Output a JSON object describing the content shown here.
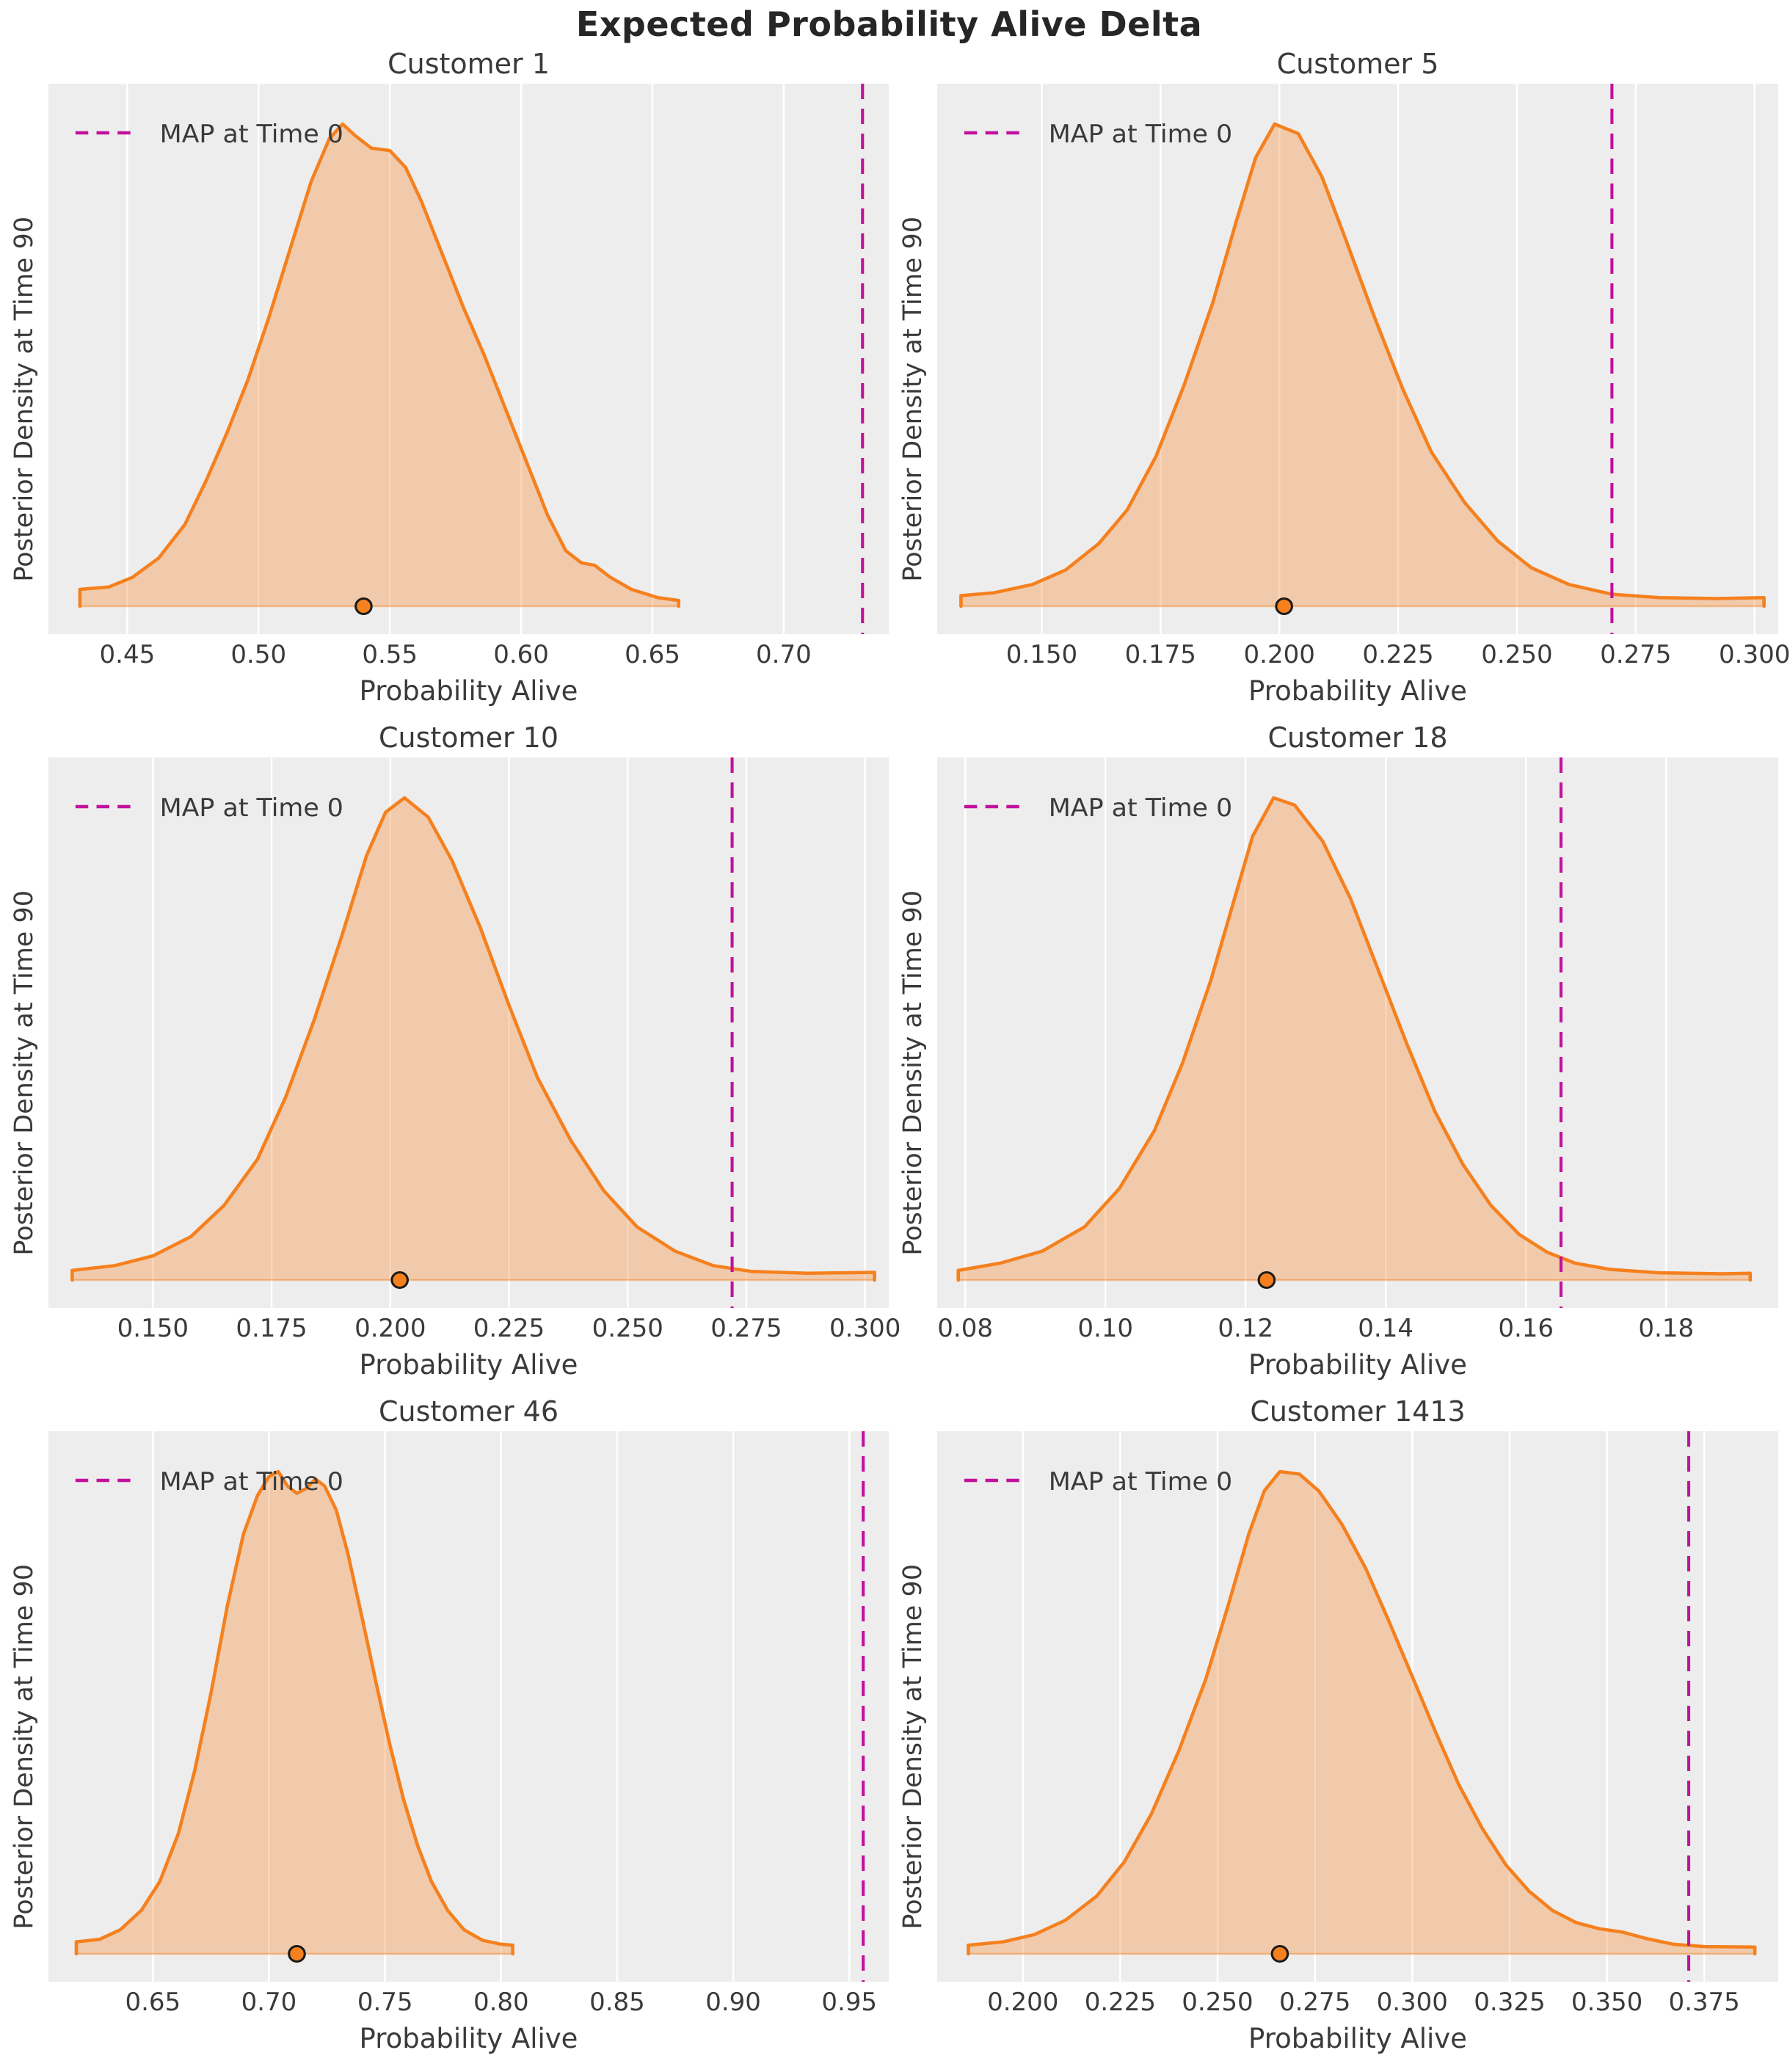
{
  "figure": {
    "suptitle": "Expected Probability Alive Delta"
  },
  "colors": {
    "curve": "#f5801e",
    "fill_opacity": 0.32,
    "map_line": "#c2119d",
    "plot_bg": "#ededed",
    "gridline": "#ffffff",
    "text": "#3a3a3a",
    "dot_fill": "#f5801e",
    "dot_edge": "#1a1a1a"
  },
  "chart_data": [
    {
      "type": "area",
      "title": "Customer 1",
      "xlabel": "Probability Alive",
      "ylabel": "Posterior Density at Time 90",
      "legend": "MAP at Time 0",
      "xlim": [
        0.42,
        0.74
      ],
      "ticks": [
        0.45,
        0.5,
        0.55,
        0.6,
        0.65,
        0.7
      ],
      "tick_labels": [
        "0.45",
        "0.50",
        "0.55",
        "0.60",
        "0.65",
        "0.70"
      ],
      "map_at_time_0": 0.73,
      "dot_value": 0.54,
      "grid": true,
      "density": [
        [
          0.432,
          0.0
        ],
        [
          0.432,
          0.035
        ],
        [
          0.443,
          0.04
        ],
        [
          0.452,
          0.06
        ],
        [
          0.462,
          0.1
        ],
        [
          0.472,
          0.17
        ],
        [
          0.48,
          0.26
        ],
        [
          0.488,
          0.36
        ],
        [
          0.496,
          0.47
        ],
        [
          0.504,
          0.6
        ],
        [
          0.512,
          0.74
        ],
        [
          0.52,
          0.88
        ],
        [
          0.527,
          0.97
        ],
        [
          0.532,
          1.0
        ],
        [
          0.537,
          0.975
        ],
        [
          0.543,
          0.95
        ],
        [
          0.55,
          0.945
        ],
        [
          0.556,
          0.91
        ],
        [
          0.562,
          0.84
        ],
        [
          0.57,
          0.73
        ],
        [
          0.578,
          0.62
        ],
        [
          0.586,
          0.52
        ],
        [
          0.594,
          0.41
        ],
        [
          0.602,
          0.3
        ],
        [
          0.61,
          0.19
        ],
        [
          0.617,
          0.115
        ],
        [
          0.623,
          0.09
        ],
        [
          0.628,
          0.085
        ],
        [
          0.634,
          0.06
        ],
        [
          0.642,
          0.035
        ],
        [
          0.652,
          0.018
        ],
        [
          0.66,
          0.012
        ],
        [
          0.66,
          0.0
        ]
      ]
    },
    {
      "type": "area",
      "title": "Customer 5",
      "xlabel": "Probability Alive",
      "ylabel": "Posterior Density at Time 90",
      "legend": "MAP at Time 0",
      "xlim": [
        0.128,
        0.305
      ],
      "ticks": [
        0.15,
        0.175,
        0.2,
        0.225,
        0.25,
        0.275,
        0.3
      ],
      "tick_labels": [
        "0.150",
        "0.175",
        "0.200",
        "0.225",
        "0.250",
        "0.275",
        "0.300"
      ],
      "map_at_time_0": 0.27,
      "dot_value": 0.201,
      "grid": true,
      "density": [
        [
          0.133,
          0.0
        ],
        [
          0.133,
          0.022
        ],
        [
          0.14,
          0.028
        ],
        [
          0.148,
          0.045
        ],
        [
          0.155,
          0.075
        ],
        [
          0.162,
          0.13
        ],
        [
          0.168,
          0.2
        ],
        [
          0.174,
          0.31
        ],
        [
          0.18,
          0.46
        ],
        [
          0.186,
          0.63
        ],
        [
          0.191,
          0.8
        ],
        [
          0.195,
          0.93
        ],
        [
          0.199,
          1.0
        ],
        [
          0.204,
          0.98
        ],
        [
          0.209,
          0.89
        ],
        [
          0.214,
          0.76
        ],
        [
          0.22,
          0.6
        ],
        [
          0.226,
          0.45
        ],
        [
          0.232,
          0.32
        ],
        [
          0.239,
          0.215
        ],
        [
          0.246,
          0.135
        ],
        [
          0.253,
          0.08
        ],
        [
          0.261,
          0.045
        ],
        [
          0.27,
          0.025
        ],
        [
          0.28,
          0.018
        ],
        [
          0.292,
          0.016
        ],
        [
          0.302,
          0.018
        ],
        [
          0.302,
          0.0
        ]
      ]
    },
    {
      "type": "area",
      "title": "Customer 10",
      "xlabel": "Probability Alive",
      "ylabel": "Posterior Density at Time 90",
      "legend": "MAP at Time 0",
      "xlim": [
        0.128,
        0.305
      ],
      "ticks": [
        0.15,
        0.175,
        0.2,
        0.225,
        0.25,
        0.275,
        0.3
      ],
      "tick_labels": [
        "0.150",
        "0.175",
        "0.200",
        "0.225",
        "0.250",
        "0.275",
        "0.300"
      ],
      "map_at_time_0": 0.272,
      "dot_value": 0.202,
      "grid": true,
      "density": [
        [
          0.133,
          0.0
        ],
        [
          0.133,
          0.02
        ],
        [
          0.142,
          0.03
        ],
        [
          0.15,
          0.05
        ],
        [
          0.158,
          0.09
        ],
        [
          0.165,
          0.155
        ],
        [
          0.172,
          0.25
        ],
        [
          0.178,
          0.38
        ],
        [
          0.184,
          0.54
        ],
        [
          0.19,
          0.72
        ],
        [
          0.195,
          0.88
        ],
        [
          0.199,
          0.97
        ],
        [
          0.203,
          1.0
        ],
        [
          0.208,
          0.96
        ],
        [
          0.213,
          0.87
        ],
        [
          0.219,
          0.73
        ],
        [
          0.225,
          0.57
        ],
        [
          0.231,
          0.42
        ],
        [
          0.238,
          0.29
        ],
        [
          0.245,
          0.185
        ],
        [
          0.252,
          0.11
        ],
        [
          0.26,
          0.06
        ],
        [
          0.268,
          0.03
        ],
        [
          0.276,
          0.018
        ],
        [
          0.288,
          0.014
        ],
        [
          0.302,
          0.016
        ],
        [
          0.302,
          0.0
        ]
      ]
    },
    {
      "type": "area",
      "title": "Customer 18",
      "xlabel": "Probability Alive",
      "ylabel": "Posterior Density at Time 90",
      "legend": "MAP at Time 0",
      "xlim": [
        0.076,
        0.196
      ],
      "ticks": [
        0.08,
        0.1,
        0.12,
        0.14,
        0.16,
        0.18
      ],
      "tick_labels": [
        "0.08",
        "0.10",
        "0.12",
        "0.14",
        "0.16",
        "0.18"
      ],
      "map_at_time_0": 0.165,
      "dot_value": 0.123,
      "grid": true,
      "density": [
        [
          0.079,
          0.0
        ],
        [
          0.079,
          0.02
        ],
        [
          0.085,
          0.035
        ],
        [
          0.091,
          0.06
        ],
        [
          0.097,
          0.11
        ],
        [
          0.102,
          0.19
        ],
        [
          0.107,
          0.31
        ],
        [
          0.111,
          0.45
        ],
        [
          0.115,
          0.62
        ],
        [
          0.118,
          0.77
        ],
        [
          0.121,
          0.92
        ],
        [
          0.124,
          1.0
        ],
        [
          0.127,
          0.985
        ],
        [
          0.131,
          0.91
        ],
        [
          0.135,
          0.79
        ],
        [
          0.139,
          0.64
        ],
        [
          0.143,
          0.49
        ],
        [
          0.147,
          0.35
        ],
        [
          0.151,
          0.24
        ],
        [
          0.155,
          0.155
        ],
        [
          0.159,
          0.095
        ],
        [
          0.163,
          0.058
        ],
        [
          0.167,
          0.035
        ],
        [
          0.172,
          0.022
        ],
        [
          0.179,
          0.015
        ],
        [
          0.188,
          0.013
        ],
        [
          0.192,
          0.014
        ],
        [
          0.192,
          0.0
        ]
      ]
    },
    {
      "type": "area",
      "title": "Customer 46",
      "xlabel": "Probability Alive",
      "ylabel": "Posterior Density at Time 90",
      "legend": "MAP at Time 0",
      "xlim": [
        0.605,
        0.967
      ],
      "ticks": [
        0.65,
        0.7,
        0.75,
        0.8,
        0.85,
        0.9,
        0.95
      ],
      "tick_labels": [
        "0.65",
        "0.70",
        "0.75",
        "0.80",
        "0.85",
        "0.90",
        "0.95"
      ],
      "map_at_time_0": 0.956,
      "dot_value": 0.712,
      "grid": true,
      "density": [
        [
          0.617,
          0.0
        ],
        [
          0.617,
          0.025
        ],
        [
          0.627,
          0.03
        ],
        [
          0.636,
          0.05
        ],
        [
          0.645,
          0.09
        ],
        [
          0.653,
          0.15
        ],
        [
          0.661,
          0.25
        ],
        [
          0.668,
          0.38
        ],
        [
          0.675,
          0.54
        ],
        [
          0.682,
          0.72
        ],
        [
          0.689,
          0.87
        ],
        [
          0.695,
          0.95
        ],
        [
          0.7,
          0.99
        ],
        [
          0.704,
          1.0
        ],
        [
          0.708,
          0.97
        ],
        [
          0.712,
          0.955
        ],
        [
          0.716,
          0.965
        ],
        [
          0.72,
          0.985
        ],
        [
          0.724,
          0.97
        ],
        [
          0.729,
          0.92
        ],
        [
          0.734,
          0.83
        ],
        [
          0.74,
          0.7
        ],
        [
          0.746,
          0.565
        ],
        [
          0.752,
          0.435
        ],
        [
          0.758,
          0.32
        ],
        [
          0.764,
          0.225
        ],
        [
          0.77,
          0.15
        ],
        [
          0.777,
          0.09
        ],
        [
          0.784,
          0.05
        ],
        [
          0.792,
          0.028
        ],
        [
          0.8,
          0.02
        ],
        [
          0.805,
          0.018
        ],
        [
          0.805,
          0.0
        ]
      ]
    },
    {
      "type": "area",
      "title": "Customer 1413",
      "xlabel": "Probability Alive",
      "ylabel": "Posterior Density at Time 90",
      "legend": "MAP at Time 0",
      "xlim": [
        0.178,
        0.394
      ],
      "ticks": [
        0.2,
        0.225,
        0.25,
        0.275,
        0.3,
        0.325,
        0.35,
        0.375
      ],
      "tick_labels": [
        "0.200",
        "0.225",
        "0.250",
        "0.275",
        "0.300",
        "0.325",
        "0.350",
        "0.375"
      ],
      "map_at_time_0": 0.371,
      "dot_value": 0.266,
      "grid": true,
      "density": [
        [
          0.186,
          0.0
        ],
        [
          0.186,
          0.018
        ],
        [
          0.195,
          0.025
        ],
        [
          0.203,
          0.04
        ],
        [
          0.211,
          0.07
        ],
        [
          0.219,
          0.12
        ],
        [
          0.226,
          0.19
        ],
        [
          0.233,
          0.29
        ],
        [
          0.24,
          0.42
        ],
        [
          0.247,
          0.57
        ],
        [
          0.253,
          0.73
        ],
        [
          0.258,
          0.87
        ],
        [
          0.262,
          0.96
        ],
        [
          0.266,
          1.0
        ],
        [
          0.271,
          0.995
        ],
        [
          0.276,
          0.96
        ],
        [
          0.282,
          0.89
        ],
        [
          0.288,
          0.8
        ],
        [
          0.294,
          0.69
        ],
        [
          0.3,
          0.575
        ],
        [
          0.306,
          0.46
        ],
        [
          0.312,
          0.35
        ],
        [
          0.318,
          0.26
        ],
        [
          0.324,
          0.185
        ],
        [
          0.33,
          0.13
        ],
        [
          0.336,
          0.09
        ],
        [
          0.342,
          0.065
        ],
        [
          0.348,
          0.052
        ],
        [
          0.354,
          0.045
        ],
        [
          0.36,
          0.032
        ],
        [
          0.367,
          0.02
        ],
        [
          0.375,
          0.015
        ],
        [
          0.388,
          0.014
        ],
        [
          0.388,
          0.0
        ]
      ]
    }
  ]
}
